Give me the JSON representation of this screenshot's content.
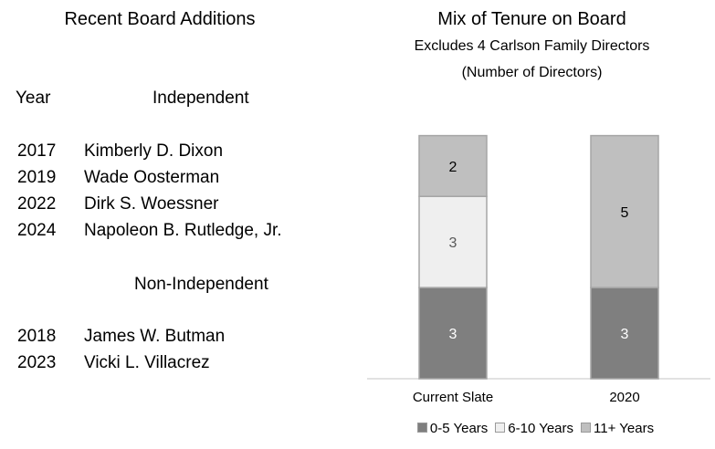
{
  "left": {
    "title": "Recent Board Additions",
    "year_header": "Year",
    "independent_header": "Independent",
    "independent": [
      {
        "year": "2017",
        "name": "Kimberly D. Dixon"
      },
      {
        "year": "2019",
        "name": "Wade Oosterman"
      },
      {
        "year": "2022",
        "name": "Dirk S. Woessner"
      },
      {
        "year": "2024",
        "name": "Napoleon B. Rutledge, Jr."
      }
    ],
    "non_independent_header": "Non-Independent",
    "non_independent": [
      {
        "year": "2018",
        "name": "James W. Butman"
      },
      {
        "year": "2023",
        "name": "Vicki L. Villacrez"
      }
    ]
  },
  "chart_data": {
    "type": "bar",
    "stacked": true,
    "title": "Mix of Tenure on Board",
    "subtitle": "Excludes 4 Carlson Family Directors",
    "subtitle2": "(Number of Directors)",
    "categories": [
      "Current Slate",
      "2020"
    ],
    "series": [
      {
        "name": "0-5 Years",
        "values": [
          3,
          3
        ],
        "color": "#7f7f7f",
        "label_color": "#ffffff"
      },
      {
        "name": "6-10 Years",
        "values": [
          3,
          0
        ],
        "color": "#efefef",
        "label_color": "#595959"
      },
      {
        "name": "11+ Years",
        "values": [
          2,
          5
        ],
        "color": "#bfbfbf",
        "label_color": "#000000"
      }
    ],
    "ylim": [
      0,
      8
    ],
    "grid": false,
    "legend_position": "bottom"
  }
}
